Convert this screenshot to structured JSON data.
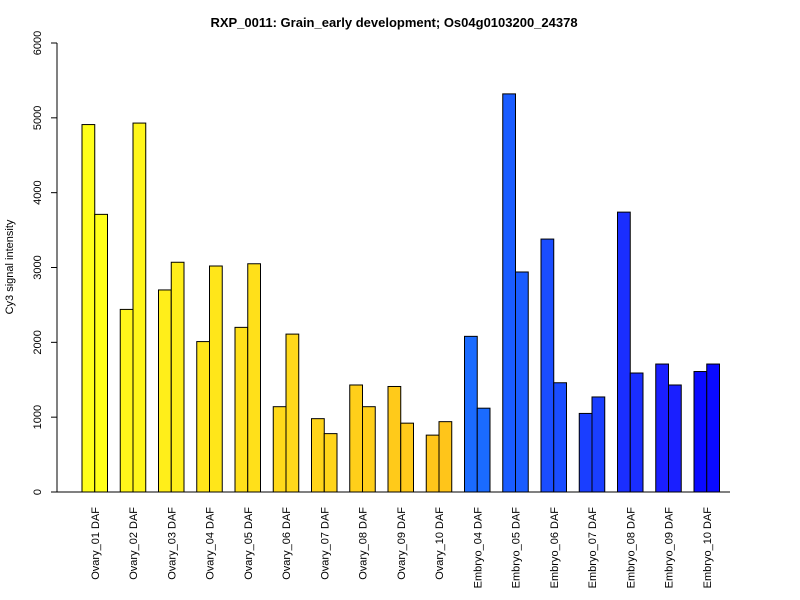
{
  "chart_data": {
    "type": "bar",
    "title": "RXP_0011: Grain_early development; Os04g0103200_24378",
    "ylabel": "Cy3 signal intensity",
    "xlabel": "",
    "ylim": [
      0,
      6000
    ],
    "yticks": [
      0,
      1000,
      2000,
      3000,
      4000,
      5000,
      6000
    ],
    "bars_per_group": 2,
    "grid": false,
    "categories": [
      "Ovary_01 DAF",
      "Ovary_02 DAF",
      "Ovary_03 DAF",
      "Ovary_04 DAF",
      "Ovary_05 DAF",
      "Ovary_06 DAF",
      "Ovary_07 DAF",
      "Ovary_08 DAF",
      "Ovary_09 DAF",
      "Ovary_10 DAF",
      "Embryo_04 DAF",
      "Embryo_05 DAF",
      "Embryo_06 DAF",
      "Embryo_07 DAF",
      "Embryo_08 DAF",
      "Embryo_09 DAF",
      "Embryo_10 DAF"
    ],
    "colors": [
      "#ffff1a",
      "#fff61a",
      "#ffee1a",
      "#ffe61a",
      "#ffe01a",
      "#ffd91a",
      "#ffd41a",
      "#ffcf1a",
      "#ffca1a",
      "#ffc51a",
      "#1a6bff",
      "#1a5cff",
      "#1a4dff",
      "#1a3eff",
      "#1a2eff",
      "#1a1fff",
      "#0a0aff"
    ],
    "values": [
      [
        4910,
        3710
      ],
      [
        2440,
        4930
      ],
      [
        2700,
        3070
      ],
      [
        2010,
        3020
      ],
      [
        2200,
        3050
      ],
      [
        1140,
        2110
      ],
      [
        980,
        780
      ],
      [
        1430,
        1140
      ],
      [
        1410,
        920
      ],
      [
        760,
        940
      ],
      [
        2080,
        1120
      ],
      [
        5320,
        2940
      ],
      [
        3380,
        1460
      ],
      [
        1050,
        1270
      ],
      [
        3740,
        1590
      ],
      [
        1710,
        1430
      ],
      [
        1610,
        1710
      ]
    ]
  }
}
